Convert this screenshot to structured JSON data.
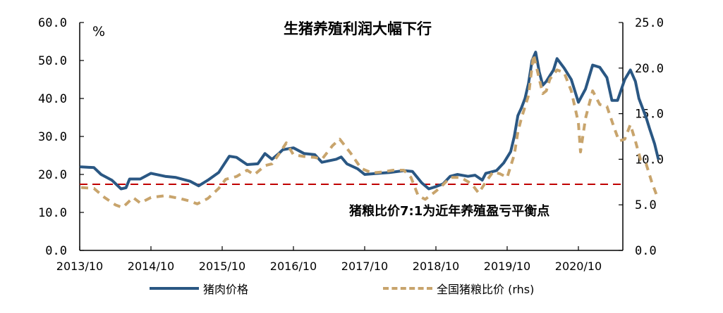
{
  "chart_data": {
    "type": "line",
    "title": "生猪养殖利润大幅下行",
    "left_axis": {
      "unit": "%",
      "ticks": [
        "60.0",
        "50.0",
        "40.0",
        "30.0",
        "20.0",
        "10.0",
        "0.0"
      ],
      "range": [
        0,
        60
      ]
    },
    "right_axis": {
      "ticks": [
        "25.0",
        "20.0",
        "15.0",
        "10.0",
        "5.0",
        "0.0"
      ],
      "range": [
        0,
        25
      ]
    },
    "x_ticks": [
      "2013/10",
      "2014/10",
      "2015/10",
      "2016/10",
      "2017/10",
      "2018/10",
      "2019/10",
      "2020/10"
    ],
    "x_range": [
      2013.75,
      2021.38
    ],
    "reference_line": {
      "value_rhs": 7.25,
      "color": "#C00000",
      "label": "猪粮比价7:1为近年养殖盈亏平衡点"
    },
    "series": [
      {
        "name": "猪肉价格",
        "axis": "left",
        "color": "#2A5783",
        "style": "solid",
        "points": [
          [
            2013.77,
            22.0
          ],
          [
            2013.95,
            21.8
          ],
          [
            2014.05,
            20.0
          ],
          [
            2014.2,
            18.5
          ],
          [
            2014.33,
            16.2
          ],
          [
            2014.4,
            16.5
          ],
          [
            2014.45,
            18.8
          ],
          [
            2014.6,
            18.8
          ],
          [
            2014.75,
            20.3
          ],
          [
            2014.95,
            19.5
          ],
          [
            2015.1,
            19.2
          ],
          [
            2015.3,
            18.2
          ],
          [
            2015.42,
            17.0
          ],
          [
            2015.55,
            18.5
          ],
          [
            2015.7,
            20.5
          ],
          [
            2015.85,
            24.8
          ],
          [
            2015.95,
            24.5
          ],
          [
            2016.1,
            22.6
          ],
          [
            2016.25,
            22.8
          ],
          [
            2016.35,
            25.5
          ],
          [
            2016.45,
            24.0
          ],
          [
            2016.55,
            25.6
          ],
          [
            2016.6,
            26.5
          ],
          [
            2016.75,
            27.0
          ],
          [
            2016.9,
            25.5
          ],
          [
            2017.05,
            25.2
          ],
          [
            2017.15,
            23.2
          ],
          [
            2017.35,
            24.0
          ],
          [
            2017.42,
            24.6
          ],
          [
            2017.5,
            22.8
          ],
          [
            2017.65,
            21.5
          ],
          [
            2017.75,
            20.0
          ],
          [
            2017.95,
            20.3
          ],
          [
            2018.1,
            20.5
          ],
          [
            2018.3,
            21.0
          ],
          [
            2018.42,
            20.8
          ],
          [
            2018.55,
            17.8
          ],
          [
            2018.65,
            16.2
          ],
          [
            2018.75,
            16.8
          ],
          [
            2018.85,
            17.5
          ],
          [
            2018.95,
            19.5
          ],
          [
            2019.05,
            20.0
          ],
          [
            2019.2,
            19.5
          ],
          [
            2019.3,
            19.8
          ],
          [
            2019.4,
            18.5
          ],
          [
            2019.45,
            20.3
          ],
          [
            2019.6,
            21.0
          ],
          [
            2019.7,
            23.0
          ],
          [
            2019.8,
            26.0
          ],
          [
            2019.85,
            30.0
          ],
          [
            2019.9,
            35.5
          ],
          [
            2019.95,
            37.5
          ],
          [
            2020.0,
            40.0
          ],
          [
            2020.05,
            44.0
          ],
          [
            2020.1,
            50.0
          ],
          [
            2020.15,
            52.2
          ],
          [
            2020.2,
            47.0
          ],
          [
            2020.25,
            43.5
          ],
          [
            2020.3,
            44.5
          ],
          [
            2020.4,
            47.5
          ],
          [
            2020.45,
            50.5
          ],
          [
            2020.55,
            48.0
          ],
          [
            2020.65,
            45.0
          ],
          [
            2020.75,
            39.0
          ],
          [
            2020.85,
            42.5
          ],
          [
            2020.95,
            48.8
          ],
          [
            2021.05,
            48.2
          ],
          [
            2021.15,
            45.5
          ],
          [
            2021.22,
            39.5
          ],
          [
            2021.3,
            39.5
          ],
          [
            2021.4,
            45.0
          ],
          [
            2021.48,
            47.5
          ],
          [
            2021.55,
            44.5
          ],
          [
            2021.6,
            40.0
          ],
          [
            2021.7,
            35.0
          ],
          [
            2021.75,
            32.0
          ],
          [
            2021.82,
            28.0
          ],
          [
            2021.87,
            24.2
          ]
        ]
      },
      {
        "name": "全国猪粮比价 (rhs)",
        "axis": "right",
        "color": "#C8A46C",
        "style": "dashed",
        "points": [
          [
            2013.77,
            6.9
          ],
          [
            2013.95,
            6.8
          ],
          [
            2014.1,
            5.8
          ],
          [
            2014.25,
            5.0
          ],
          [
            2014.35,
            4.7
          ],
          [
            2014.42,
            5.2
          ],
          [
            2014.5,
            5.8
          ],
          [
            2014.6,
            5.2
          ],
          [
            2014.75,
            5.8
          ],
          [
            2014.95,
            6.0
          ],
          [
            2015.15,
            5.7
          ],
          [
            2015.3,
            5.4
          ],
          [
            2015.4,
            5.1
          ],
          [
            2015.55,
            5.7
          ],
          [
            2015.7,
            6.8
          ],
          [
            2015.8,
            7.8
          ],
          [
            2015.95,
            8.1
          ],
          [
            2016.1,
            8.8
          ],
          [
            2016.2,
            8.3
          ],
          [
            2016.35,
            9.3
          ],
          [
            2016.45,
            9.5
          ],
          [
            2016.55,
            10.6
          ],
          [
            2016.65,
            11.8
          ],
          [
            2016.75,
            10.5
          ],
          [
            2016.9,
            10.3
          ],
          [
            2017.05,
            10.2
          ],
          [
            2017.15,
            10.0
          ],
          [
            2017.3,
            11.5
          ],
          [
            2017.4,
            12.2
          ],
          [
            2017.55,
            10.7
          ],
          [
            2017.7,
            9.0
          ],
          [
            2017.85,
            8.5
          ],
          [
            2018.0,
            8.6
          ],
          [
            2018.15,
            8.8
          ],
          [
            2018.3,
            8.8
          ],
          [
            2018.4,
            8.0
          ],
          [
            2018.5,
            6.0
          ],
          [
            2018.6,
            5.6
          ],
          [
            2018.75,
            6.5
          ],
          [
            2018.85,
            7.2
          ],
          [
            2018.95,
            8.0
          ],
          [
            2019.1,
            8.0
          ],
          [
            2019.25,
            7.3
          ],
          [
            2019.35,
            6.3
          ],
          [
            2019.45,
            7.5
          ],
          [
            2019.55,
            8.6
          ],
          [
            2019.65,
            8.4
          ],
          [
            2019.75,
            8.0
          ],
          [
            2019.85,
            10.5
          ],
          [
            2019.9,
            13.0
          ],
          [
            2019.95,
            14.5
          ],
          [
            2020.05,
            17.0
          ],
          [
            2020.12,
            21.5
          ],
          [
            2020.18,
            19.5
          ],
          [
            2020.25,
            17.2
          ],
          [
            2020.3,
            17.5
          ],
          [
            2020.35,
            18.8
          ],
          [
            2020.45,
            19.8
          ],
          [
            2020.55,
            19.5
          ],
          [
            2020.65,
            17.5
          ],
          [
            2020.75,
            14.0
          ],
          [
            2020.78,
            10.8
          ],
          [
            2020.85,
            14.5
          ],
          [
            2020.95,
            17.5
          ],
          [
            2021.05,
            16.0
          ],
          [
            2021.15,
            15.8
          ],
          [
            2021.25,
            13.5
          ],
          [
            2021.32,
            12.0
          ],
          [
            2021.4,
            12.2
          ],
          [
            2021.48,
            13.8
          ],
          [
            2021.55,
            12.0
          ],
          [
            2021.62,
            10.0
          ],
          [
            2021.7,
            9.5
          ],
          [
            2021.78,
            7.5
          ],
          [
            2021.87,
            5.6
          ]
        ]
      }
    ],
    "legend": [
      {
        "label": "猪肉价格",
        "style": "solid",
        "color": "#2A5783"
      },
      {
        "label": "全国猪粮比价 (rhs)",
        "style": "dashed",
        "color": "#C8A46C"
      }
    ],
    "grid": false,
    "legend_position": "bottom"
  }
}
